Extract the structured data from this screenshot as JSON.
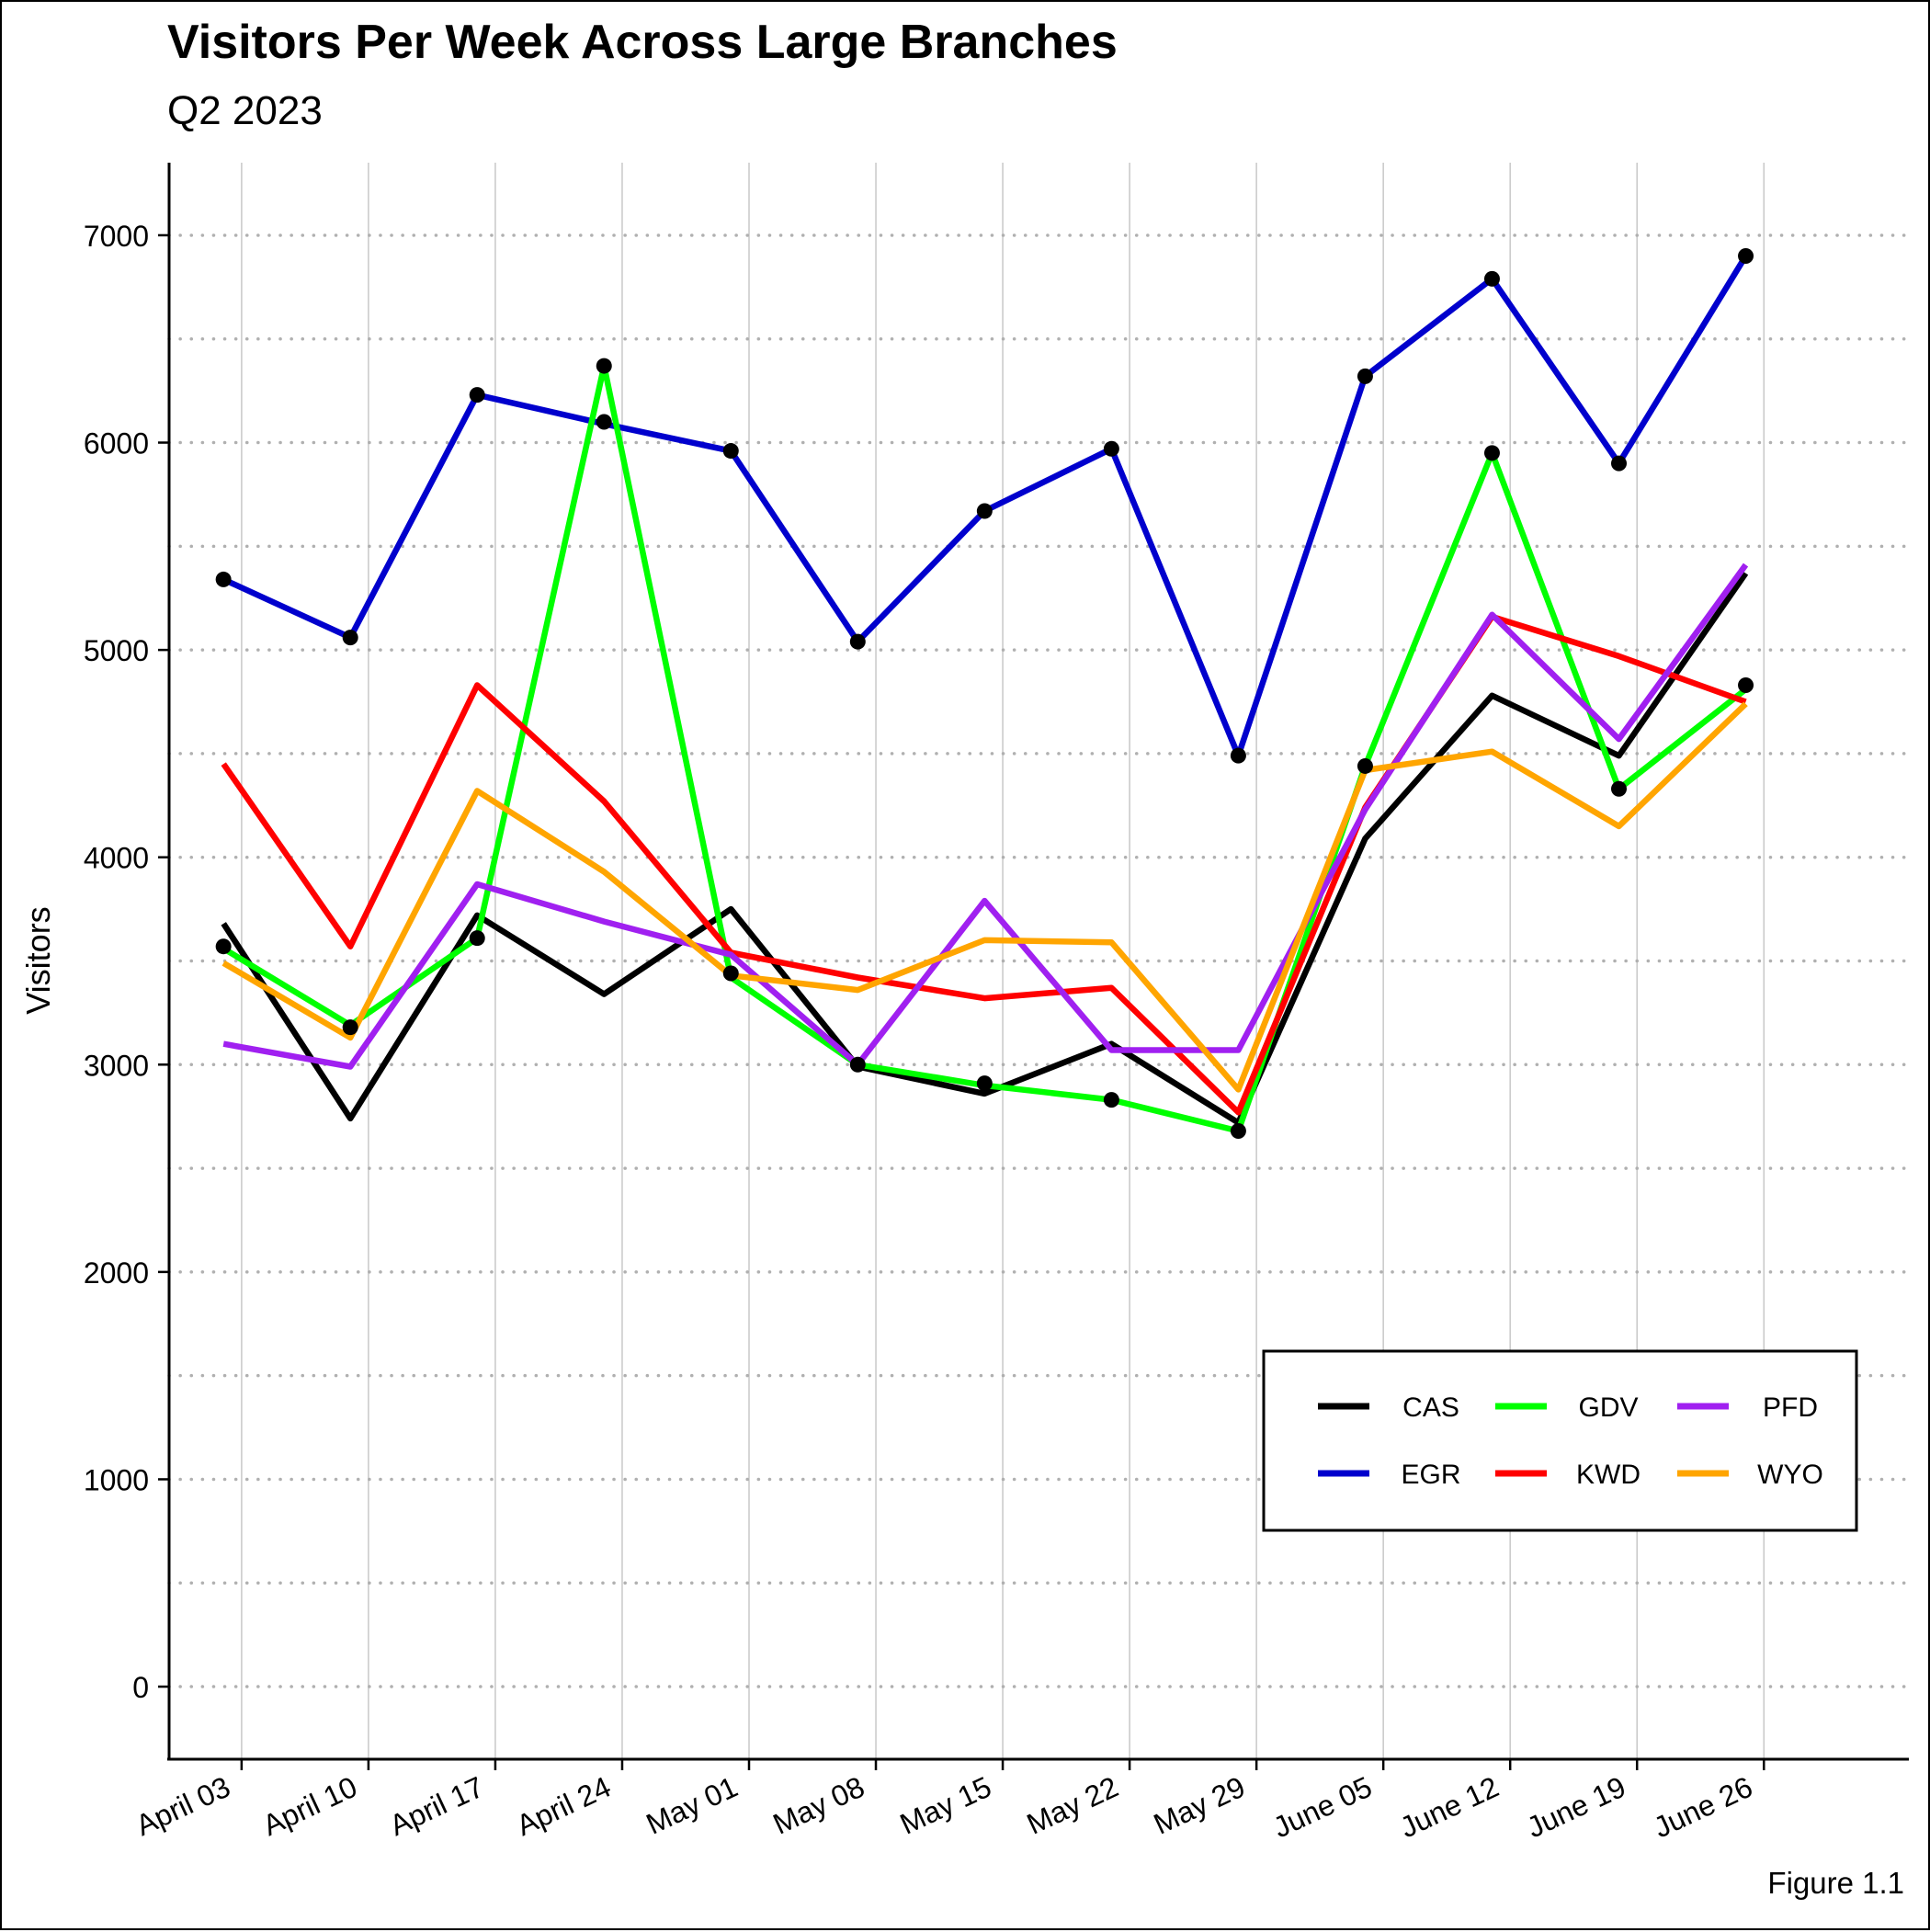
{
  "chart_data": {
    "type": "line",
    "title": "Visitors Per Week Across Large Branches",
    "subtitle": "Q2 2023",
    "xlabel": "",
    "ylabel": "Visitors",
    "caption": "Figure 1.1",
    "x": [
      "2023-04-03",
      "2023-04-10",
      "2023-04-17",
      "2023-04-24",
      "2023-05-01",
      "2023-05-08",
      "2023-05-15",
      "2023-05-22",
      "2023-05-29",
      "2023-06-05",
      "2023-06-12",
      "2023-06-19",
      "2023-06-26"
    ],
    "x_tick_labels": [
      "April 03",
      "April 10",
      "April 17",
      "April 24",
      "May 01",
      "May 08",
      "May 15",
      "May 22",
      "May 29",
      "June 05",
      "June 12",
      "June 19",
      "June 26"
    ],
    "ylim": [
      -350,
      7350
    ],
    "y_ticks": [
      0,
      1000,
      2000,
      3000,
      4000,
      5000,
      6000,
      7000
    ],
    "grid": "y dotted at 500 steps, x solid at ticks",
    "legend_position": "bottom-right",
    "series": [
      {
        "name": "CAS",
        "color": "#000000",
        "x": [
          "2023-04-02",
          "2023-04-09",
          "2023-04-16",
          "2023-04-23",
          "2023-04-30",
          "2023-05-07",
          "2023-05-14",
          "2023-05-21",
          "2023-05-28",
          "2023-06-04",
          "2023-06-11",
          "2023-06-18",
          "2023-06-25"
        ],
        "values": [
          3680,
          2740,
          3720,
          3340,
          3750,
          2990,
          2860,
          3100,
          2720,
          4090,
          4780,
          4490,
          5370
        ]
      },
      {
        "name": "EGR",
        "color": "#0000CD",
        "x": [
          "2023-04-02",
          "2023-04-09",
          "2023-04-16",
          "2023-04-23",
          "2023-04-30",
          "2023-05-07",
          "2023-05-14",
          "2023-05-21",
          "2023-05-28",
          "2023-06-04",
          "2023-06-11",
          "2023-06-18",
          "2023-06-25"
        ],
        "values": [
          5340,
          5060,
          6230,
          6090,
          5960,
          5040,
          5670,
          5970,
          4490,
          6320,
          6790,
          5900,
          6900
        ]
      },
      {
        "name": "GDV",
        "color": "#00FF00",
        "x": [
          "2023-04-02",
          "2023-04-09",
          "2023-04-16",
          "2023-04-23",
          "2023-04-30",
          "2023-05-07",
          "2023-05-14",
          "2023-05-21",
          "2023-05-28",
          "2023-06-04",
          "2023-06-11",
          "2023-06-18",
          "2023-06-25"
        ],
        "values": [
          3560,
          3190,
          3610,
          6370,
          3420,
          3000,
          2900,
          2830,
          2680,
          4440,
          5950,
          4330,
          4810
        ]
      },
      {
        "name": "KWD",
        "color": "#FF0000",
        "x": [
          "2023-04-02",
          "2023-04-09",
          "2023-04-16",
          "2023-04-23",
          "2023-04-30",
          "2023-05-07",
          "2023-05-14",
          "2023-05-21",
          "2023-05-28",
          "2023-06-04",
          "2023-06-11",
          "2023-06-18",
          "2023-06-25"
        ],
        "values": [
          4450,
          3570,
          4830,
          4270,
          3540,
          3420,
          3320,
          3370,
          2770,
          4240,
          5160,
          4970,
          4750
        ]
      },
      {
        "name": "PFD",
        "color": "#A020F0",
        "x": [
          "2023-04-02",
          "2023-04-09",
          "2023-04-16",
          "2023-04-23",
          "2023-04-30",
          "2023-05-07",
          "2023-05-14",
          "2023-05-21",
          "2023-05-28",
          "2023-06-04",
          "2023-06-11",
          "2023-06-18",
          "2023-06-25"
        ],
        "values": [
          3100,
          2990,
          3870,
          3690,
          3530,
          3000,
          3790,
          3070,
          3070,
          4230,
          5170,
          4570,
          5410
        ]
      },
      {
        "name": "WYO",
        "color": "#FFA500",
        "x": [
          "2023-04-02",
          "2023-04-09",
          "2023-04-16",
          "2023-04-23",
          "2023-04-30",
          "2023-05-07",
          "2023-05-14",
          "2023-05-21",
          "2023-05-28",
          "2023-06-04",
          "2023-06-11",
          "2023-06-18",
          "2023-06-25"
        ],
        "values": [
          3490,
          3130,
          4320,
          3930,
          3430,
          3360,
          3600,
          3590,
          2880,
          4420,
          4510,
          4150,
          4740
        ]
      }
    ],
    "points": {
      "color": "#000000",
      "x": [
        "2023-04-02",
        "2023-04-09",
        "2023-04-16",
        "2023-04-23",
        "2023-04-23",
        "2023-04-30",
        "2023-04-30",
        "2023-05-07",
        "2023-05-07",
        "2023-05-14",
        "2023-05-14",
        "2023-05-21",
        "2023-05-21",
        "2023-05-28",
        "2023-05-28",
        "2023-06-04",
        "2023-06-04",
        "2023-06-11",
        "2023-06-11",
        "2023-06-18",
        "2023-06-18",
        "2023-06-25",
        "2023-06-25",
        "2023-04-02",
        "2023-04-09",
        "2023-04-16"
      ],
      "values": [
        5340,
        5060,
        6230,
        6370,
        6100,
        5960,
        3440,
        5040,
        3000,
        5670,
        2910,
        5970,
        2830,
        4490,
        2680,
        6320,
        4440,
        6790,
        5950,
        5900,
        4330,
        6900,
        4830,
        3570,
        3180,
        3610
      ]
    }
  }
}
